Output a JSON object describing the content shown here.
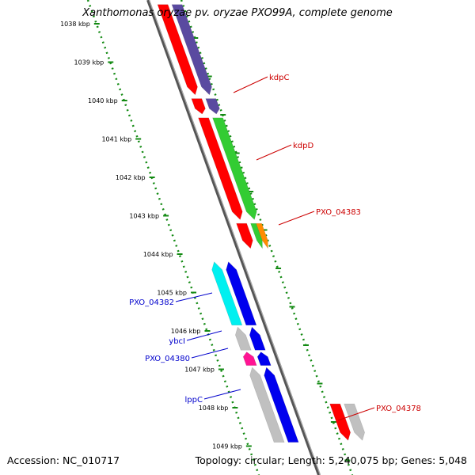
{
  "title": "Xanthomonas oryzae pv. oryzae PXO99A, complete genome",
  "footer": {
    "accession": "Accession: NC_010717",
    "topology": "Topology: circular; Length: 5,240,075 bp; Genes: 5,048"
  },
  "ruler": {
    "unit": "kbp",
    "ticks": [
      "1038 kbp",
      "1039 kbp",
      "1040 kbp",
      "1041 kbp",
      "1042 kbp",
      "1043 kbp",
      "1044 kbp",
      "1045 kbp",
      "1046 kbp",
      "1047 kbp",
      "1048 kbp",
      "1049 kbp"
    ]
  },
  "colors": {
    "red": "#ff0000",
    "purple": "#5a4aa0",
    "green": "#33cc33",
    "orange": "#ff8c00",
    "blue": "#0000ee",
    "cyan": "#00f0f0",
    "magenta": "#ff1493",
    "gray": "#c0c0c0",
    "backbone": "#808080",
    "label_forward": "#cc0000",
    "label_reverse": "#0000cc",
    "dots": "#138a13"
  },
  "genes_forward": [
    {
      "id": "g-f-1",
      "track": "inner",
      "start": 1037.5,
      "end": 1039.85,
      "color": "red"
    },
    {
      "id": "g-f-2",
      "track": "outer",
      "start": 1037.5,
      "end": 1039.85,
      "color": "purple"
    },
    {
      "id": "g-f-3",
      "track": "inner",
      "start": 1039.95,
      "end": 1040.35,
      "color": "red"
    },
    {
      "id": "g-f-4",
      "track": "outer",
      "start": 1039.95,
      "end": 1040.35,
      "color": "purple"
    },
    {
      "id": "g-f-5",
      "track": "inner",
      "start": 1040.45,
      "end": 1043.1,
      "color": "red"
    },
    {
      "id": "g-f-6",
      "track": "outer",
      "start": 1040.45,
      "end": 1043.1,
      "color": "green"
    },
    {
      "id": "g-f-7",
      "track": "inner",
      "start": 1043.2,
      "end": 1043.85,
      "color": "red"
    },
    {
      "id": "g-f-8",
      "track": "outer-a",
      "start": 1043.2,
      "end": 1043.85,
      "color": "green"
    },
    {
      "id": "g-f-9",
      "track": "outer-b",
      "start": 1043.2,
      "end": 1043.85,
      "color": "orange"
    }
  ],
  "genes_reverse": [
    {
      "id": "g-r-1",
      "track": "outer",
      "start": 1044.2,
      "end": 1045.85,
      "color": "cyan"
    },
    {
      "id": "g-r-2",
      "track": "inner",
      "start": 1044.2,
      "end": 1045.85,
      "color": "blue"
    },
    {
      "id": "g-r-3",
      "track": "outer",
      "start": 1045.9,
      "end": 1046.5,
      "color": "gray"
    },
    {
      "id": "g-r-4",
      "track": "inner",
      "start": 1045.9,
      "end": 1046.5,
      "color": "blue"
    },
    {
      "id": "g-r-5",
      "track": "outer",
      "start": 1046.55,
      "end": 1046.9,
      "color": "magenta"
    },
    {
      "id": "g-r-6",
      "track": "inner",
      "start": 1046.55,
      "end": 1046.9,
      "color": "blue"
    },
    {
      "id": "g-r-7",
      "track": "outer",
      "start": 1046.95,
      "end": 1048.9,
      "color": "gray"
    },
    {
      "id": "g-r-8",
      "track": "inner",
      "start": 1046.95,
      "end": 1048.9,
      "color": "blue"
    }
  ],
  "genes_forward_far": [
    {
      "id": "g-ff-1",
      "track": "inner",
      "start": 1047.9,
      "end": 1048.85,
      "color": "red"
    },
    {
      "id": "g-ff-2",
      "track": "outer",
      "start": 1047.9,
      "end": 1048.85,
      "color": "gray"
    }
  ],
  "labels": [
    {
      "text": "kdpC",
      "side": "right",
      "color": "label_forward",
      "key": "kdpC"
    },
    {
      "text": "kdpD",
      "side": "right",
      "color": "label_forward",
      "key": "kdpD"
    },
    {
      "text": "PXO_04383",
      "side": "right",
      "color": "label_forward",
      "key": "PXO_04383"
    },
    {
      "text": "PXO_04382",
      "side": "left",
      "color": "label_reverse",
      "key": "PXO_04382"
    },
    {
      "text": "ybcI",
      "side": "left",
      "color": "label_reverse",
      "key": "ybcI"
    },
    {
      "text": "PXO_04380",
      "side": "left",
      "color": "label_reverse",
      "key": "PXO_04380"
    },
    {
      "text": "lppC",
      "side": "left",
      "color": "label_reverse",
      "key": "lppC"
    },
    {
      "text": "PXO_04378",
      "side": "right",
      "color": "label_forward",
      "key": "PXO_04378"
    }
  ]
}
